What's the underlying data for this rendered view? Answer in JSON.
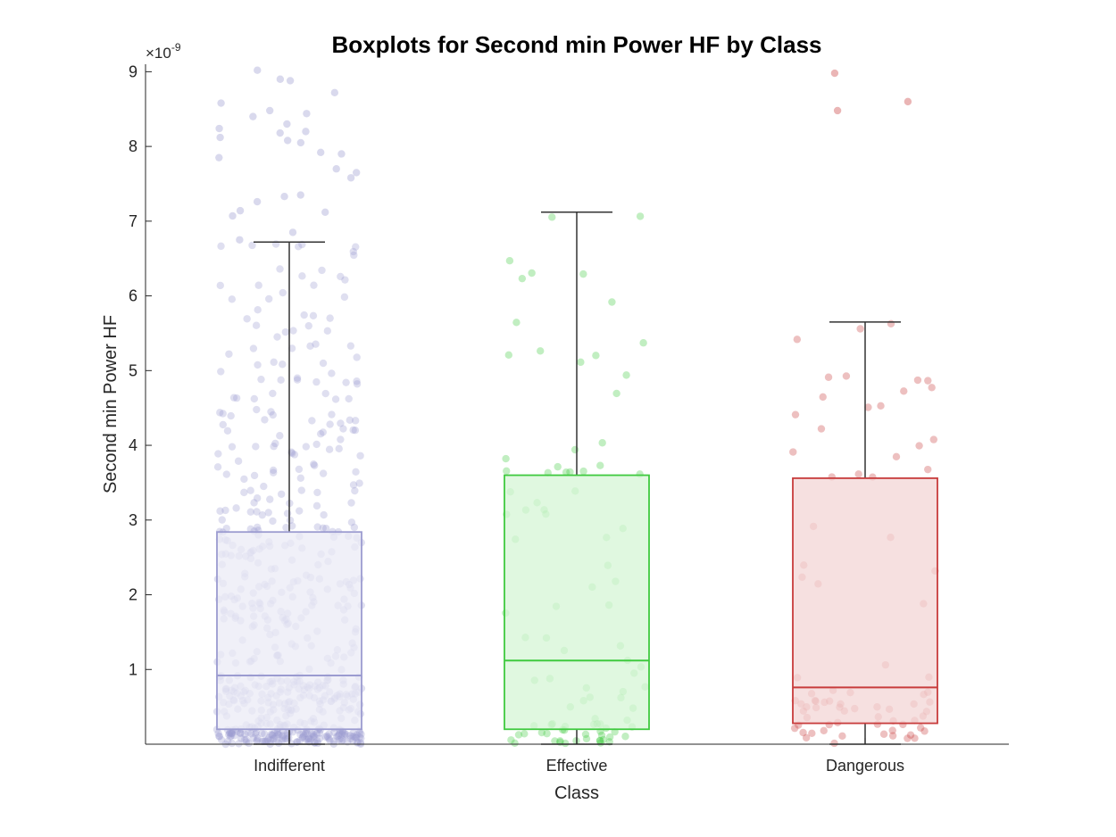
{
  "chart_data": {
    "type": "boxplot",
    "title": "Boxplots for Second min Power HF by Class",
    "xlabel": "Class",
    "ylabel": "Second min Power HF",
    "y_exponent_base": "×10",
    "y_exponent_power": "-9",
    "ylim": [
      0,
      9.1
    ],
    "yticks": [
      1,
      2,
      3,
      4,
      5,
      6,
      7,
      8,
      9
    ],
    "ytick_labels": [
      "1",
      "2",
      "3",
      "4",
      "5",
      "6",
      "7",
      "8",
      "9"
    ],
    "categories": [
      "Indifferent",
      "Effective",
      "Dangerous"
    ],
    "boxes": [
      {
        "category": "Indifferent",
        "q1": 0.2,
        "median": 0.92,
        "q3": 2.84,
        "whisker_low": 0,
        "whisker_high": 6.72,
        "color": "#9b9bd0",
        "fill": "#ebebf6",
        "points": 600,
        "seed": 11
      },
      {
        "category": "Effective",
        "q1": 0.2,
        "median": 1.12,
        "q3": 3.6,
        "whisker_low": 0,
        "whisker_high": 7.12,
        "color": "#3fca3f",
        "fill": "#d5f5d5",
        "points": 95,
        "seed": 23
      },
      {
        "category": "Dangerous",
        "q1": 0.28,
        "median": 0.76,
        "q3": 3.56,
        "whisker_low": 0,
        "whisker_high": 5.65,
        "color": "#c83c3c",
        "fill": "#f3d5d5",
        "points": 80,
        "seed": 37
      }
    ],
    "outliers": [
      {
        "category": "Indifferent",
        "values": [
          9.02,
          8.9,
          8.88,
          8.72,
          8.58,
          8.48,
          8.44,
          8.4,
          8.3,
          8.24,
          8.2,
          8.18,
          8.12,
          8.08,
          8.05,
          7.92,
          7.9,
          7.85,
          7.7,
          7.65,
          7.58,
          7.35,
          7.33,
          7.26,
          7.14,
          7.12,
          7.07,
          6.85,
          6.75
        ]
      },
      {
        "category": "Effective",
        "values": []
      },
      {
        "category": "Dangerous",
        "values": [
          8.98,
          8.6,
          8.48
        ]
      }
    ],
    "grid": false,
    "legend": "none"
  }
}
